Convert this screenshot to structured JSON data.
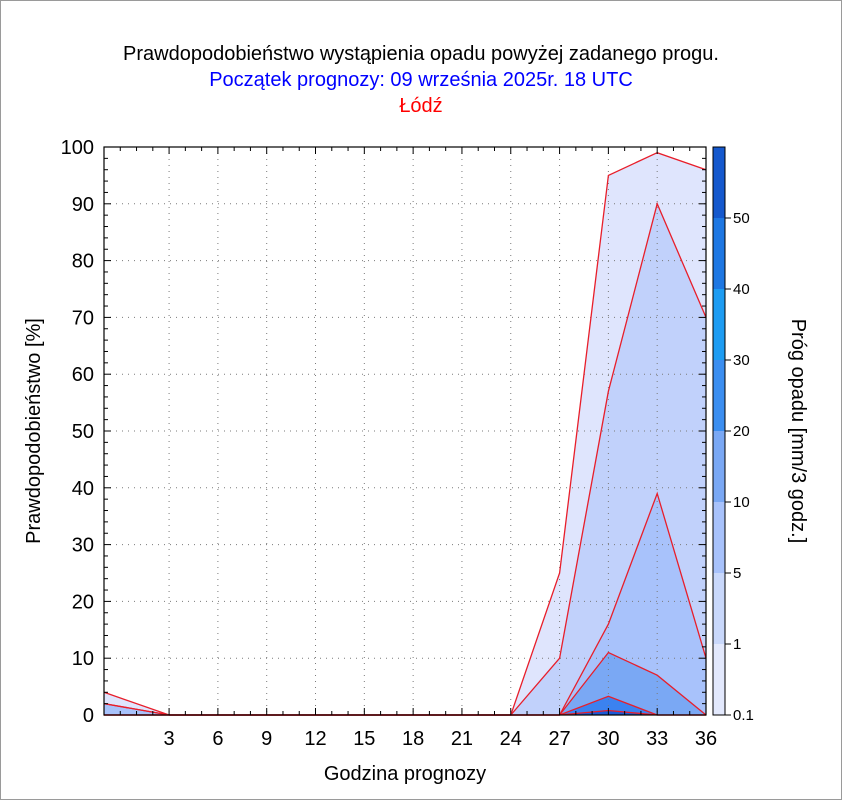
{
  "header": {
    "title": "Prawdopodobieństwo wystąpienia opadu powyżej zadanego progu.",
    "subtitle": "Początek prognozy: 09 września 2025r. 18 UTC",
    "location": "Łódź"
  },
  "chart_data": {
    "type": "area",
    "title": "Prawdopodobieństwo wystąpienia opadu powyżej zadanego progu.",
    "subtitle": "Początek prognozy: 09 września 2025r. 18 UTC",
    "location": "Łódź",
    "xlabel": "Godzina prognozy",
    "ylabel": "Prawdopodobieństwo [%]",
    "colorbar_label": "Próg opadu [mm/3 godz.]",
    "xlim": [
      -1,
      36
    ],
    "ylim": [
      0,
      100
    ],
    "x_ticks": [
      "3",
      "6",
      "9",
      "12",
      "15",
      "18",
      "21",
      "24",
      "27",
      "30",
      "33",
      "36"
    ],
    "y_ticks": [
      "0",
      "10",
      "20",
      "30",
      "40",
      "50",
      "60",
      "70",
      "80",
      "90",
      "100"
    ],
    "grid": true,
    "x": [
      -1,
      3,
      6,
      9,
      12,
      15,
      18,
      21,
      24,
      27,
      30,
      33,
      36
    ],
    "series": [
      {
        "name": "0.1",
        "color": "#dfe5fd",
        "values": [
          4,
          0,
          0,
          0,
          0,
          0,
          0,
          0,
          0,
          25,
          95,
          99,
          96
        ]
      },
      {
        "name": "1",
        "color": "#c1d1fb",
        "values": [
          2,
          0,
          0,
          0,
          0,
          0,
          0,
          0,
          0,
          10,
          57,
          90,
          70
        ]
      },
      {
        "name": "5",
        "color": "#a8c2fb",
        "values": [
          2,
          0,
          0,
          0,
          0,
          0,
          0,
          0,
          0,
          0,
          16,
          39,
          10
        ]
      },
      {
        "name": "10",
        "color": "#7aa8f4",
        "values": [
          0,
          0,
          0,
          0,
          0,
          0,
          0,
          0,
          0,
          0,
          11,
          7,
          0
        ]
      },
      {
        "name": "20",
        "color": "#3b82f0",
        "values": [
          0,
          0,
          0,
          0,
          0,
          0,
          0,
          0,
          0,
          0,
          3.3,
          0,
          0
        ]
      },
      {
        "name": "30",
        "color": "#1a5ad7",
        "values": [
          0,
          0,
          0,
          0,
          0,
          0,
          0,
          0,
          0,
          0,
          0.8,
          0,
          0
        ]
      }
    ],
    "colorbar": {
      "labels": [
        "0.1",
        "1",
        "5",
        "10",
        "20",
        "30",
        "40",
        "50"
      ],
      "bands": [
        {
          "from": 0,
          "to": 1,
          "color": "#e3e9fd"
        },
        {
          "from": 1,
          "to": 2,
          "color": "#c9d8fb"
        },
        {
          "from": 2,
          "to": 3,
          "color": "#a8c2fb"
        },
        {
          "from": 3,
          "to": 4,
          "color": "#7aa8f4"
        },
        {
          "from": 4,
          "to": 5,
          "color": "#3b8ef0"
        },
        {
          "from": 5,
          "to": 6,
          "color": "#1d9cf2"
        },
        {
          "from": 6,
          "to": 7,
          "color": "#1e77e2"
        },
        {
          "from": 7,
          "to": 8,
          "color": "#1558cd"
        },
        {
          "from": 8,
          "to": 9,
          "color": "#0f3ba0"
        }
      ]
    },
    "line_color": "#e81e2a"
  }
}
